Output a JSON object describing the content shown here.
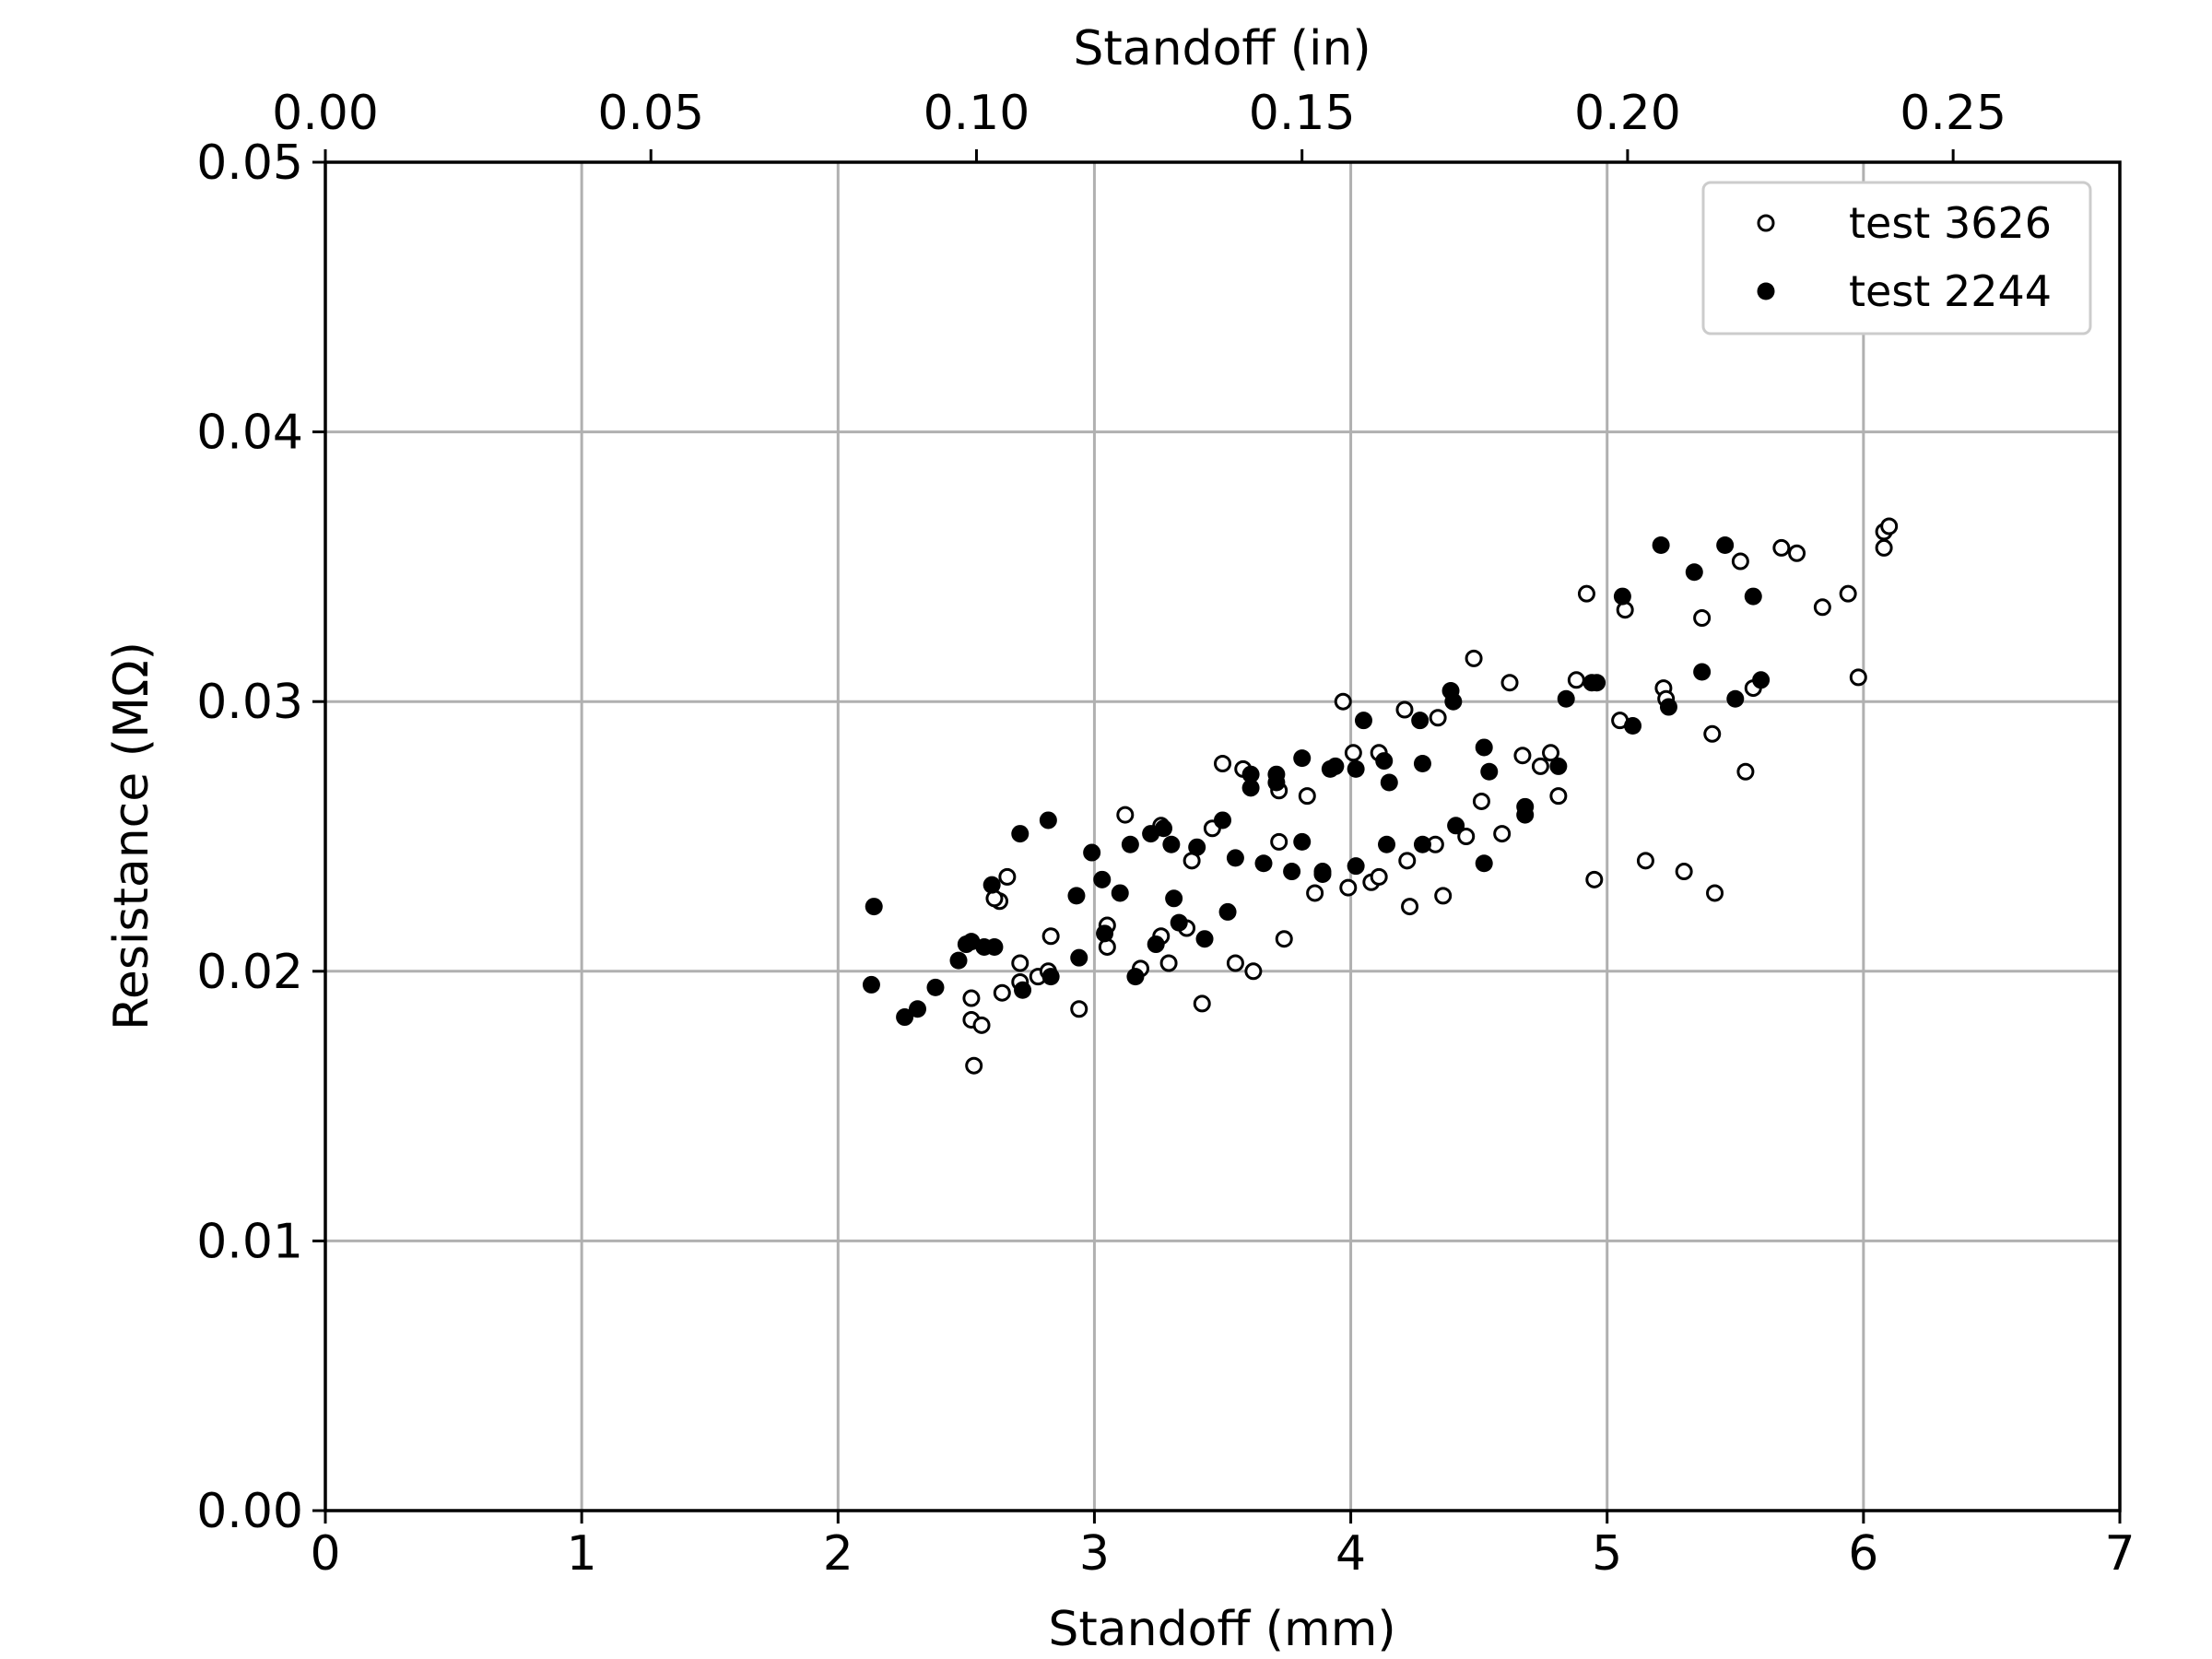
{
  "chart_data": {
    "type": "scatter",
    "xlabel": "Standoff (mm)",
    "ylabel": "Resistance (MΩ)",
    "x2label": "Standoff (in)",
    "xlim": [
      0,
      7
    ],
    "ylim": [
      0,
      0.05
    ],
    "x2lim": [
      0,
      0.2756
    ],
    "xticks": [
      "0",
      "1",
      "2",
      "3",
      "4",
      "5",
      "6",
      "7"
    ],
    "yticks": [
      "0.00",
      "0.01",
      "0.02",
      "0.03",
      "0.04",
      "0.05"
    ],
    "x2ticks": [
      "0.00",
      "0.05",
      "0.10",
      "0.15",
      "0.20",
      "0.25"
    ],
    "grid": true,
    "legend_position": "top-right",
    "series": [
      {
        "name": "test 3626",
        "marker": "open-circle",
        "color": "#000000",
        "points": [
          [
            2.53,
            0.0165
          ],
          [
            2.52,
            0.0182
          ],
          [
            2.56,
            0.018
          ],
          [
            2.52,
            0.019
          ],
          [
            2.64,
            0.0192
          ],
          [
            2.71,
            0.0196
          ],
          [
            2.71,
            0.0203
          ],
          [
            2.78,
            0.0198
          ],
          [
            2.82,
            0.02
          ],
          [
            2.63,
            0.0226
          ],
          [
            2.61,
            0.0227
          ],
          [
            2.66,
            0.0235
          ],
          [
            2.83,
            0.0213
          ],
          [
            2.94,
            0.0186
          ],
          [
            3.05,
            0.0209
          ],
          [
            3.05,
            0.0217
          ],
          [
            3.12,
            0.0258
          ],
          [
            3.18,
            0.0201
          ],
          [
            3.26,
            0.0213
          ],
          [
            3.29,
            0.0203
          ],
          [
            3.26,
            0.0254
          ],
          [
            3.38,
            0.0241
          ],
          [
            3.36,
            0.0216
          ],
          [
            3.42,
            0.0188
          ],
          [
            3.46,
            0.0253
          ],
          [
            3.5,
            0.0277
          ],
          [
            3.55,
            0.0203
          ],
          [
            3.58,
            0.0275
          ],
          [
            3.62,
            0.02
          ],
          [
            3.72,
            0.0248
          ],
          [
            3.72,
            0.0267
          ],
          [
            3.74,
            0.0212
          ],
          [
            3.83,
            0.0265
          ],
          [
            3.86,
            0.0229
          ],
          [
            3.89,
            0.0237
          ],
          [
            3.97,
            0.03
          ],
          [
            3.99,
            0.0231
          ],
          [
            4.01,
            0.0281
          ],
          [
            4.08,
            0.0233
          ],
          [
            4.11,
            0.0235
          ],
          [
            4.11,
            0.0281
          ],
          [
            4.21,
            0.0297
          ],
          [
            4.22,
            0.0241
          ],
          [
            4.23,
            0.0224
          ],
          [
            4.33,
            0.0247
          ],
          [
            4.34,
            0.0294
          ],
          [
            4.36,
            0.0228
          ],
          [
            4.45,
            0.025
          ],
          [
            4.48,
            0.0316
          ],
          [
            4.51,
            0.0263
          ],
          [
            4.59,
            0.0251
          ],
          [
            4.62,
            0.0307
          ],
          [
            4.67,
            0.028
          ],
          [
            4.74,
            0.0276
          ],
          [
            4.78,
            0.0281
          ],
          [
            4.81,
            0.0265
          ],
          [
            4.88,
            0.0308
          ],
          [
            4.92,
            0.034
          ],
          [
            4.95,
            0.0234
          ],
          [
            5.05,
            0.0293
          ],
          [
            5.07,
            0.0334
          ],
          [
            5.15,
            0.0241
          ],
          [
            5.22,
            0.0305
          ],
          [
            5.23,
            0.0301
          ],
          [
            5.3,
            0.0237
          ],
          [
            5.37,
            0.0331
          ],
          [
            5.41,
            0.0288
          ],
          [
            5.42,
            0.0229
          ],
          [
            5.52,
            0.0352
          ],
          [
            5.54,
            0.0274
          ],
          [
            5.57,
            0.0305
          ],
          [
            5.68,
            0.0357
          ],
          [
            5.74,
            0.0355
          ],
          [
            5.84,
            0.0335
          ],
          [
            5.94,
            0.034
          ],
          [
            5.98,
            0.0309
          ],
          [
            6.08,
            0.0363
          ],
          [
            6.08,
            0.0357
          ],
          [
            6.1,
            0.0365
          ]
        ]
      },
      {
        "name": "test 2244",
        "marker": "filled-circle",
        "color": "#000000",
        "points": [
          [
            2.13,
            0.0195
          ],
          [
            2.14,
            0.0224
          ],
          [
            2.26,
            0.0183
          ],
          [
            2.31,
            0.0186
          ],
          [
            2.38,
            0.0194
          ],
          [
            2.47,
            0.0204
          ],
          [
            2.5,
            0.021
          ],
          [
            2.52,
            0.0211
          ],
          [
            2.57,
            0.0209
          ],
          [
            2.61,
            0.0209
          ],
          [
            2.6,
            0.0232
          ],
          [
            2.71,
            0.0251
          ],
          [
            2.72,
            0.0193
          ],
          [
            2.82,
            0.0256
          ],
          [
            2.83,
            0.0198
          ],
          [
            2.93,
            0.0228
          ],
          [
            2.94,
            0.0205
          ],
          [
            2.99,
            0.0244
          ],
          [
            3.03,
            0.0234
          ],
          [
            3.04,
            0.0214
          ],
          [
            3.1,
            0.0229
          ],
          [
            3.14,
            0.0247
          ],
          [
            3.16,
            0.0198
          ],
          [
            3.22,
            0.0251
          ],
          [
            3.24,
            0.021
          ],
          [
            3.27,
            0.0253
          ],
          [
            3.3,
            0.0247
          ],
          [
            3.31,
            0.0227
          ],
          [
            3.33,
            0.0218
          ],
          [
            3.4,
            0.0246
          ],
          [
            3.43,
            0.0212
          ],
          [
            3.5,
            0.0256
          ],
          [
            3.52,
            0.0222
          ],
          [
            3.55,
            0.0242
          ],
          [
            3.61,
            0.0273
          ],
          [
            3.61,
            0.0268
          ],
          [
            3.66,
            0.024
          ],
          [
            3.71,
            0.0273
          ],
          [
            3.71,
            0.027
          ],
          [
            3.77,
            0.0237
          ],
          [
            3.81,
            0.0279
          ],
          [
            3.81,
            0.0248
          ],
          [
            3.89,
            0.0236
          ],
          [
            3.92,
            0.0275
          ],
          [
            3.94,
            0.0276
          ],
          [
            4.02,
            0.0239
          ],
          [
            4.02,
            0.0275
          ],
          [
            4.05,
            0.0293
          ],
          [
            4.13,
            0.0278
          ],
          [
            4.14,
            0.0247
          ],
          [
            4.15,
            0.027
          ],
          [
            4.27,
            0.0293
          ],
          [
            4.28,
            0.0277
          ],
          [
            4.28,
            0.0247
          ],
          [
            4.39,
            0.0304
          ],
          [
            4.4,
            0.03
          ],
          [
            4.41,
            0.0254
          ],
          [
            4.52,
            0.0283
          ],
          [
            4.52,
            0.024
          ],
          [
            4.54,
            0.0274
          ],
          [
            4.68,
            0.0261
          ],
          [
            4.68,
            0.0258
          ],
          [
            4.81,
            0.0276
          ],
          [
            4.84,
            0.0301
          ],
          [
            4.94,
            0.0307
          ],
          [
            4.96,
            0.0307
          ],
          [
            5.06,
            0.0339
          ],
          [
            5.1,
            0.0291
          ],
          [
            5.21,
            0.0358
          ],
          [
            5.24,
            0.0298
          ],
          [
            5.34,
            0.0348
          ],
          [
            5.37,
            0.0311
          ],
          [
            5.46,
            0.0358
          ],
          [
            5.5,
            0.0301
          ],
          [
            5.57,
            0.0339
          ],
          [
            5.6,
            0.0308
          ]
        ]
      }
    ]
  }
}
